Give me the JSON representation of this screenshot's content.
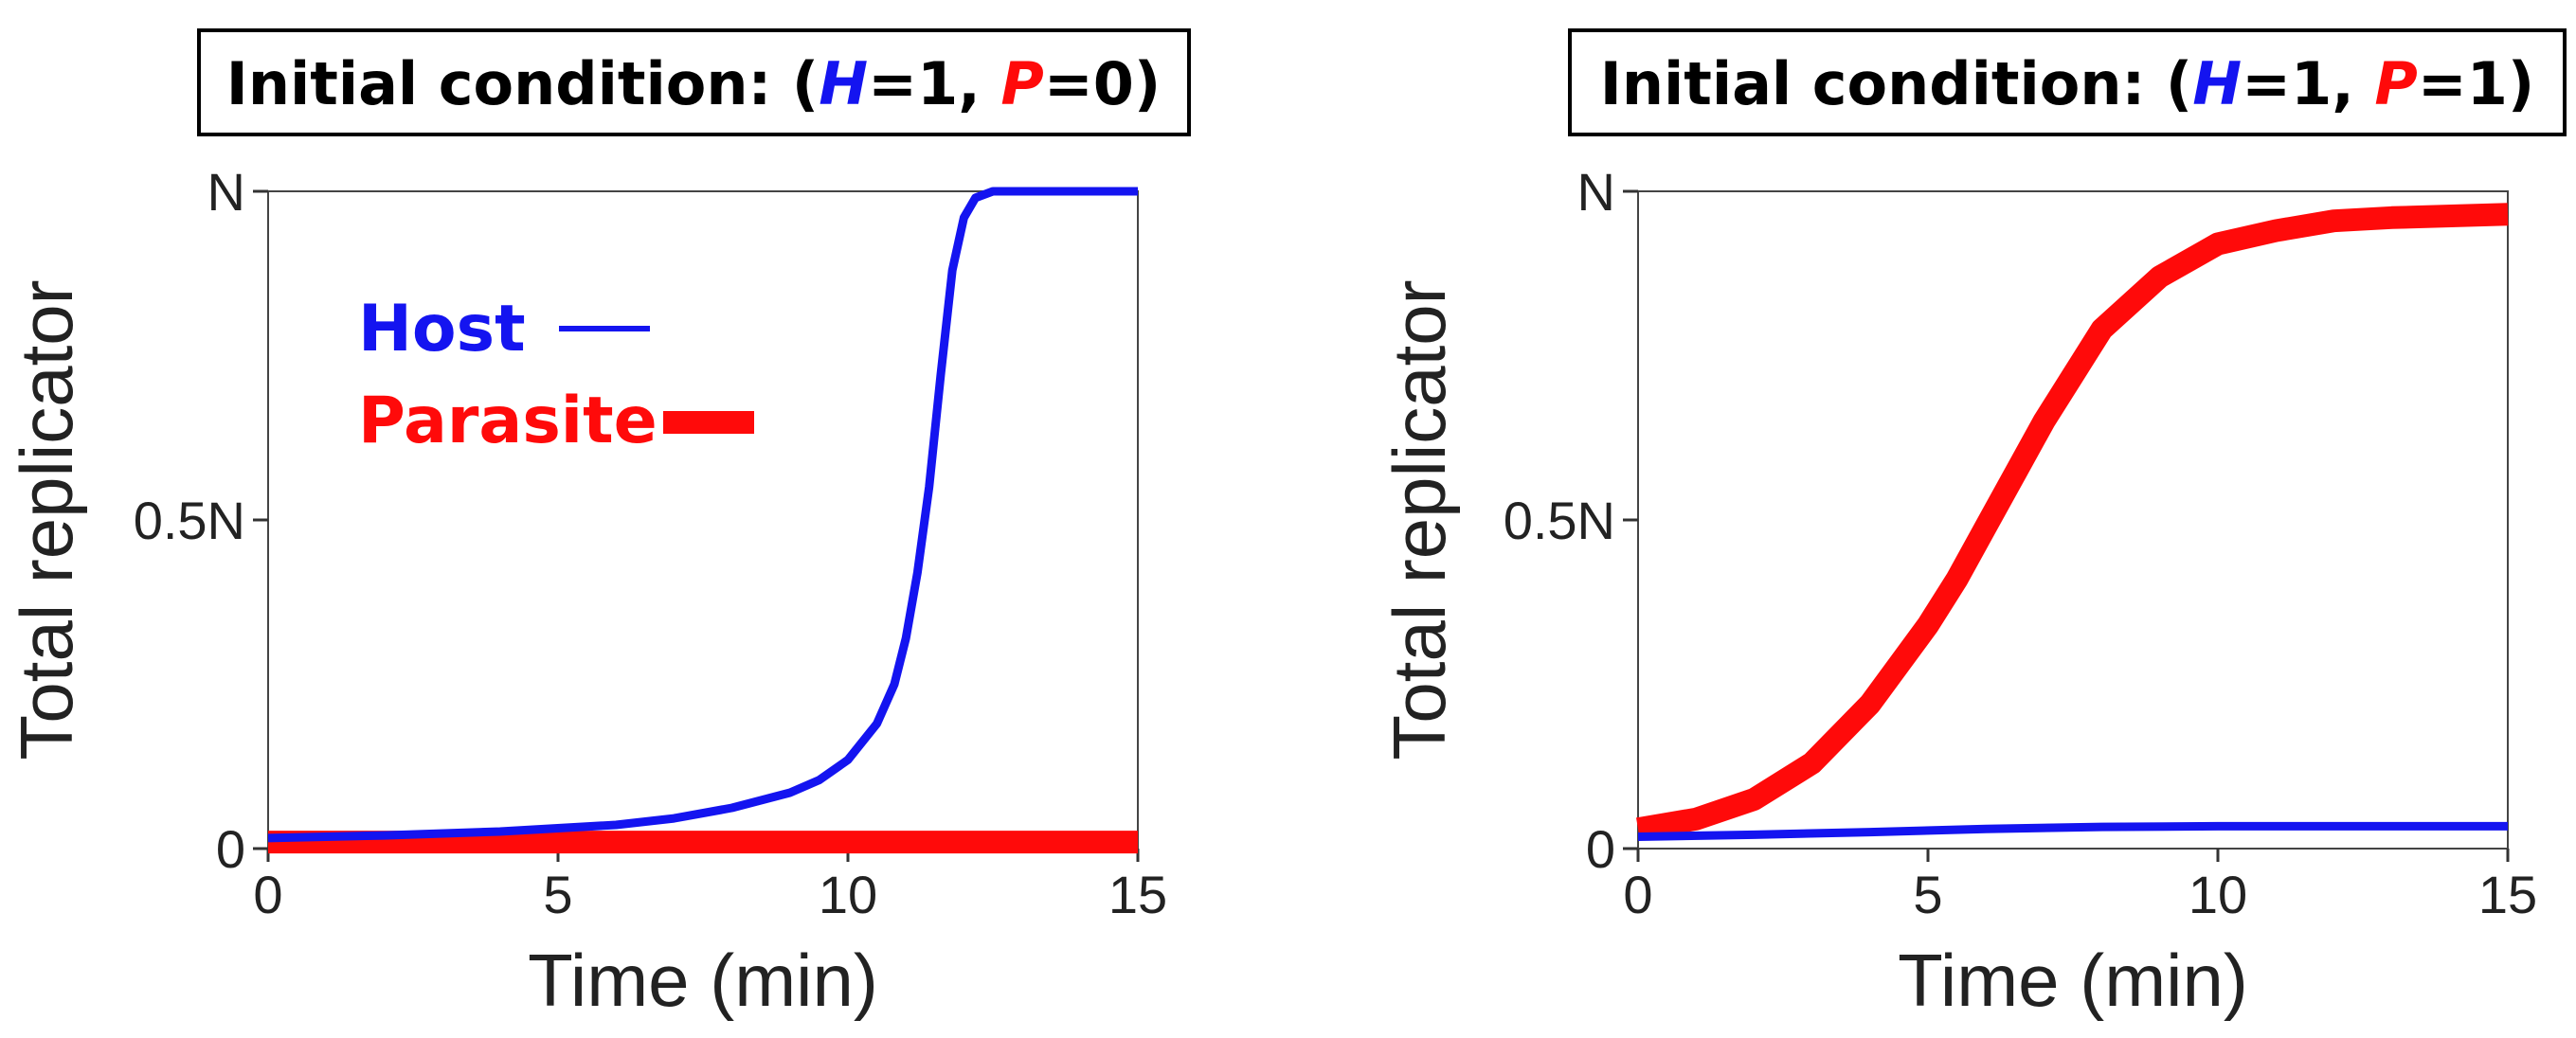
{
  "colors": {
    "host": "#1414f0",
    "parasite": "#ff0a0a",
    "axis": "#333333"
  },
  "legend": {
    "host": "Host",
    "parasite": "Parasite"
  },
  "chart_data": [
    {
      "type": "line",
      "title": {
        "prefix": "Initial condition: (",
        "h_var": "H",
        "h_eq": "=1, ",
        "p_var": "P",
        "p_eq": "=0)"
      },
      "xlabel": "Time (min)",
      "ylabel": "Total replicator",
      "xlim": [
        0,
        15
      ],
      "ylim": [
        0,
        1
      ],
      "xticks": [
        {
          "v": 0,
          "label": "0"
        },
        {
          "v": 5,
          "label": "5"
        },
        {
          "v": 10,
          "label": "10"
        },
        {
          "v": 15,
          "label": "15"
        }
      ],
      "yticks": [
        {
          "v": 0,
          "label": "0"
        },
        {
          "v": 0.5,
          "label": "0.5N"
        },
        {
          "v": 1,
          "label": "N"
        }
      ],
      "series": [
        {
          "name": "Host",
          "x": [
            0,
            2,
            4,
            6,
            7,
            8,
            9,
            9.5,
            10,
            10.5,
            10.8,
            11,
            11.2,
            11.4,
            11.6,
            11.8,
            12,
            12.2,
            12.5,
            13,
            14,
            15
          ],
          "y": [
            0.016,
            0.02,
            0.026,
            0.036,
            0.046,
            0.062,
            0.085,
            0.104,
            0.135,
            0.19,
            0.25,
            0.32,
            0.42,
            0.55,
            0.72,
            0.88,
            0.96,
            0.99,
            1.0,
            1.0,
            1.0,
            1.0
          ]
        },
        {
          "name": "Parasite",
          "x": [
            0,
            5,
            10,
            15
          ],
          "y": [
            0.01,
            0.01,
            0.01,
            0.01
          ]
        }
      ]
    },
    {
      "type": "line",
      "title": {
        "prefix": "Initial condition: (",
        "h_var": "H",
        "h_eq": "=1, ",
        "p_var": "P",
        "p_eq": "=1)"
      },
      "xlabel": "Time (min)",
      "ylabel": "Total replicator",
      "xlim": [
        0,
        15
      ],
      "ylim": [
        0,
        1
      ],
      "xticks": [
        {
          "v": 0,
          "label": "0"
        },
        {
          "v": 5,
          "label": "5"
        },
        {
          "v": 10,
          "label": "10"
        },
        {
          "v": 15,
          "label": "15"
        }
      ],
      "yticks": [
        {
          "v": 0,
          "label": "0"
        },
        {
          "v": 0.5,
          "label": "0.5N"
        },
        {
          "v": 1,
          "label": "N"
        }
      ],
      "series": [
        {
          "name": "Host",
          "x": [
            0,
            2,
            4,
            6,
            8,
            10,
            12,
            15
          ],
          "y": [
            0.018,
            0.021,
            0.025,
            0.03,
            0.033,
            0.034,
            0.034,
            0.034
          ]
        },
        {
          "name": "Parasite",
          "x": [
            0,
            1,
            2,
            3,
            4,
            5,
            5.5,
            6,
            6.5,
            7,
            7.5,
            8,
            9,
            10,
            11,
            12,
            13,
            15
          ],
          "y": [
            0.03,
            0.045,
            0.075,
            0.13,
            0.22,
            0.34,
            0.41,
            0.49,
            0.57,
            0.65,
            0.72,
            0.79,
            0.87,
            0.92,
            0.94,
            0.955,
            0.96,
            0.965
          ]
        }
      ]
    }
  ]
}
